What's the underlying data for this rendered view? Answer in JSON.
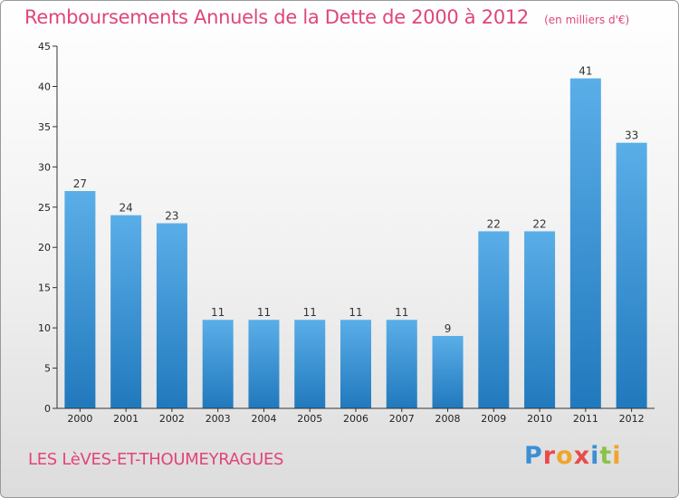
{
  "header": {
    "title": "Remboursements Annuels de la Dette de 2000 à 2012",
    "subtitle": "(en milliers d'€)"
  },
  "footer": {
    "commune": "LES LèVES-ET-THOUMEYRAGUES",
    "brand": "Proxiti"
  },
  "colors": {
    "bar_top": "#5aaee8",
    "bar_bottom": "#2179bd",
    "title": "#e0457b",
    "axis": "#333333"
  },
  "chart_data": {
    "type": "bar",
    "categories": [
      "2000",
      "2001",
      "2002",
      "2003",
      "2004",
      "2005",
      "2006",
      "2007",
      "2008",
      "2009",
      "2010",
      "2011",
      "2012"
    ],
    "values": [
      27,
      24,
      23,
      11,
      11,
      11,
      11,
      11,
      9,
      22,
      22,
      41,
      33
    ],
    "title": "Remboursements Annuels de la Dette de 2000 à 2012",
    "subtitle": "(en milliers d'€)",
    "ylim": [
      0,
      45
    ],
    "yticks": [
      0,
      5,
      10,
      15,
      20,
      25,
      30,
      35,
      40,
      45
    ],
    "grid": false,
    "data_labels": true
  }
}
